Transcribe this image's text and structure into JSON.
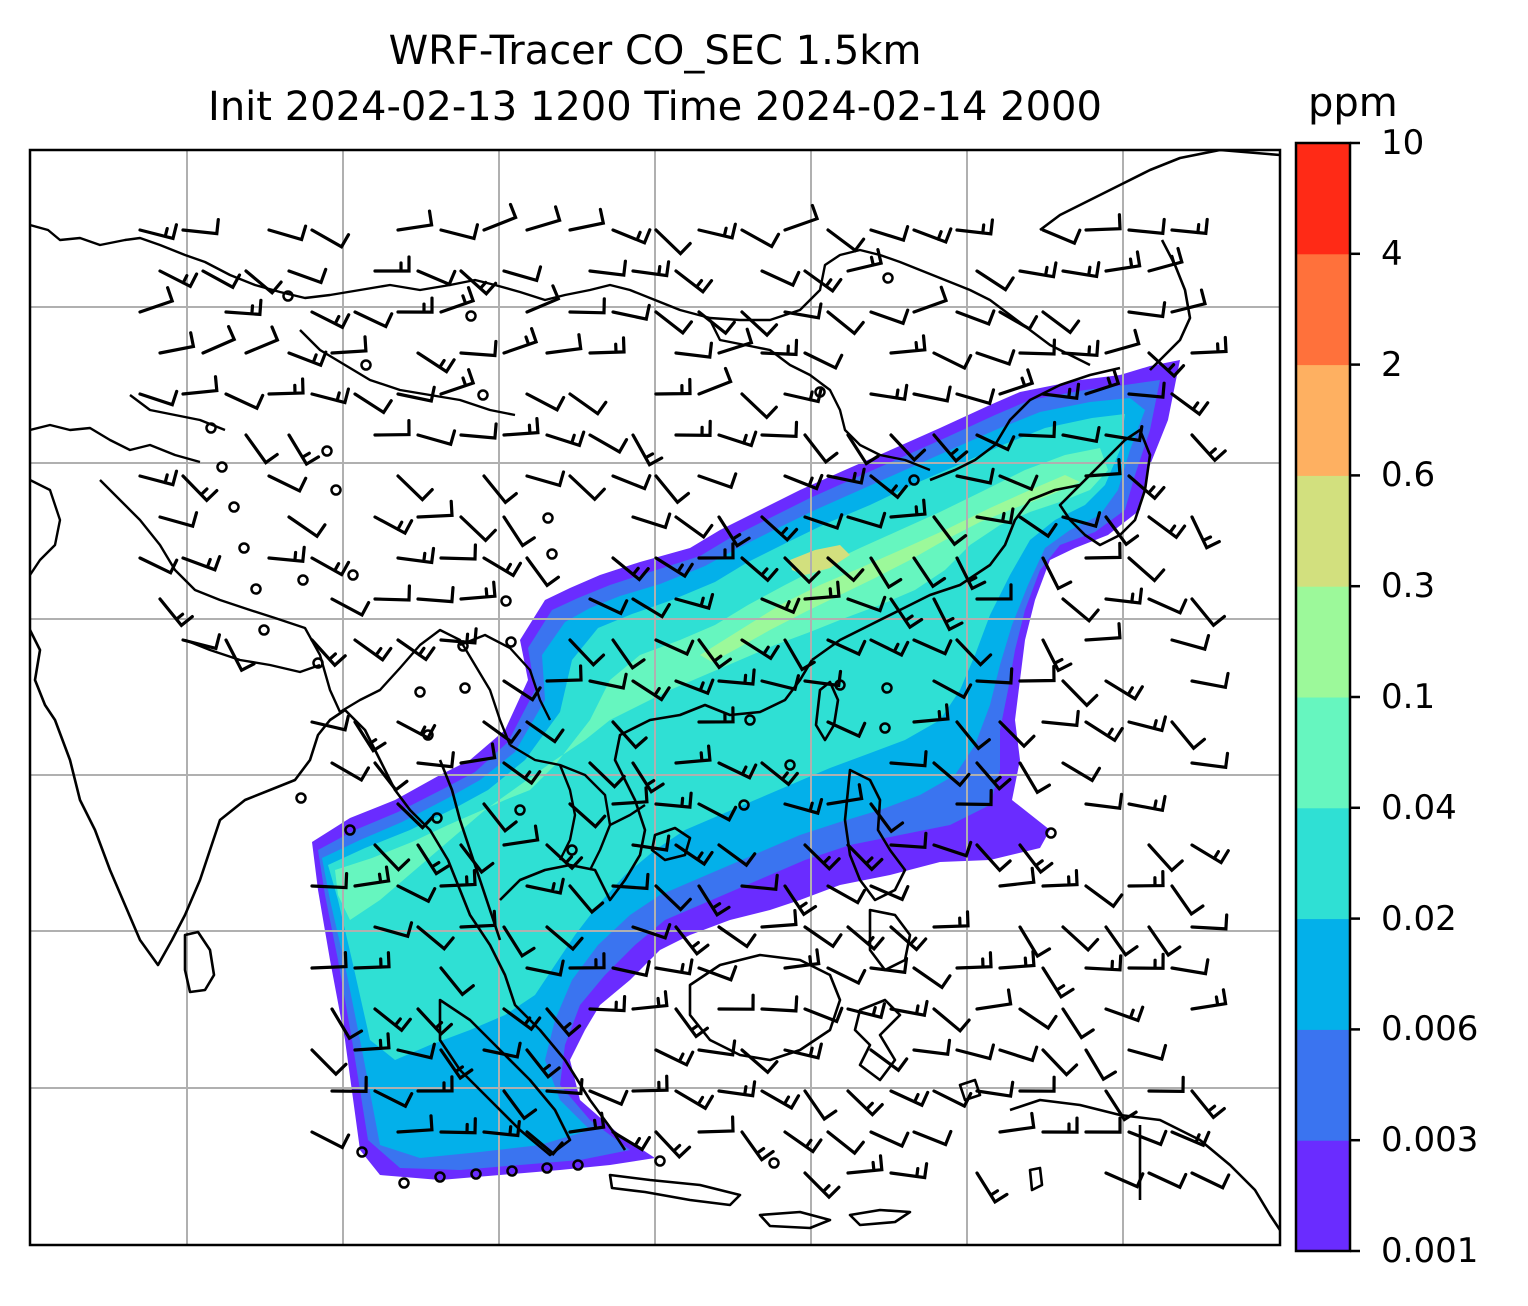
{
  "title": {
    "line1": "WRF-Tracer CO_SEC 1.5km",
    "line2": "Init 2024-02-13 1200 Time 2024-02-14 2000"
  },
  "colorbar": {
    "unit": "ppm",
    "levels": [
      "0.001",
      "0.003",
      "0.006",
      "0.02",
      "0.04",
      "0.1",
      "0.3",
      "0.6",
      "2",
      "4",
      "10"
    ],
    "colors": [
      "#6a2cff",
      "#3a74f0",
      "#03b0ea",
      "#2fe0d4",
      "#66f6bf",
      "#9cf99a",
      "#d2e07e",
      "#feb061",
      "#ff713b",
      "#ff2a16"
    ]
  },
  "map": {
    "variable": "CO_SEC tracer concentration",
    "overlays": [
      "coastlines",
      "country-borders",
      "lat-lon-gridlines",
      "wind-barbs",
      "calm-wind-circles"
    ]
  }
}
